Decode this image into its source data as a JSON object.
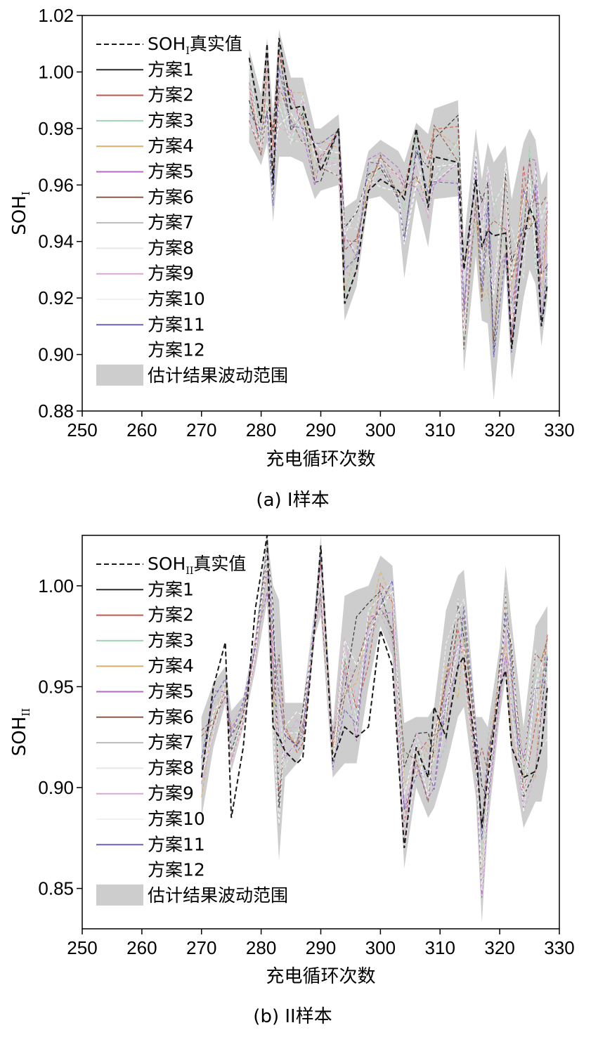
{
  "chart_data": [
    {
      "type": "line",
      "caption": "(a) I样本",
      "ylabel": "SOH",
      "ylabel_sub": "I",
      "xlabel": "充电循环次数",
      "xlim": [
        250,
        330
      ],
      "ylim": [
        0.88,
        1.02
      ],
      "xticks": [
        250,
        260,
        270,
        280,
        290,
        300,
        310,
        320,
        330
      ],
      "yticks": [
        0.88,
        0.9,
        0.92,
        0.94,
        0.96,
        0.98,
        1.0,
        1.02
      ],
      "ytick_labels": [
        "0.88",
        "0.90",
        "0.92",
        "0.94",
        "0.96",
        "0.98",
        "1.00",
        "1.02"
      ],
      "legend": {
        "true_label": "SOH",
        "true_sub": "I",
        "true_suffix": "真实值",
        "band_label": "估计结果波动范围",
        "scheme_labels": [
          "方案1",
          "方案2",
          "方案3",
          "方案4",
          "方案5",
          "方案6",
          "方案7",
          "方案8",
          "方案9",
          "方案10",
          "方案11",
          "方案12"
        ]
      },
      "x": [
        278,
        280,
        281,
        282,
        283,
        285,
        287,
        289,
        290,
        293,
        294,
        296,
        298,
        300,
        303,
        304,
        306,
        308,
        309,
        313,
        314,
        316,
        317,
        318,
        319,
        321,
        322,
        324,
        325,
        326,
        327,
        328
      ],
      "true_values": [
        1.005,
        0.982,
        1.01,
        0.96,
        1.012,
        0.987,
        0.988,
        0.973,
        0.965,
        0.98,
        0.918,
        0.93,
        0.958,
        0.962,
        0.958,
        0.955,
        0.98,
        0.952,
        0.97,
        0.968,
        0.93,
        0.962,
        0.938,
        0.944,
        0.942,
        0.943,
        0.902,
        0.94,
        0.952,
        0.947,
        0.91,
        0.925
      ],
      "band_upper": [
        1.008,
        0.992,
        1.012,
        0.985,
        1.015,
        0.998,
        0.998,
        0.98,
        0.98,
        0.985,
        0.952,
        0.955,
        0.972,
        0.976,
        0.972,
        0.968,
        0.982,
        0.978,
        0.987,
        0.99,
        0.94,
        0.98,
        0.962,
        0.975,
        0.968,
        0.974,
        0.955,
        0.975,
        0.98,
        0.976,
        0.96,
        0.965
      ],
      "band_lower": [
        0.975,
        0.967,
        0.975,
        0.947,
        0.97,
        0.97,
        0.968,
        0.955,
        0.958,
        0.96,
        0.912,
        0.924,
        0.955,
        0.956,
        0.95,
        0.927,
        0.955,
        0.938,
        0.955,
        0.956,
        0.894,
        0.935,
        0.912,
        0.911,
        0.884,
        0.93,
        0.891,
        0.92,
        0.93,
        0.925,
        0.903,
        0.92
      ],
      "series_colors": [
        "#2a2a2a",
        "#c8564b",
        "#9fd4b3",
        "#d9b06c",
        "#b56bc4",
        "#8b5a4a",
        "#bbbbbb",
        "#e8e8e8",
        "#dda7d5",
        "#f2f2f2",
        "#6e63b5",
        "#ffffff"
      ],
      "band_color": "#cdcdcd"
    },
    {
      "type": "line",
      "caption": "(b) II样本",
      "ylabel": "SOH",
      "ylabel_sub": "II",
      "xlabel": "充电循环次数",
      "xlim": [
        250,
        330
      ],
      "ylim": [
        0.83,
        1.025
      ],
      "xticks": [
        250,
        260,
        270,
        280,
        290,
        300,
        310,
        320,
        330
      ],
      "yticks": [
        0.85,
        0.9,
        0.95,
        1.0
      ],
      "ytick_labels": [
        "0.85",
        "0.90",
        "0.95",
        "1.00"
      ],
      "legend": {
        "true_label": "SOH",
        "true_sub": "II",
        "true_suffix": "真实值",
        "band_label": "估计结果波动范围",
        "scheme_labels": [
          "方案1",
          "方案2",
          "方案3",
          "方案4",
          "方案5",
          "方案6",
          "方案7",
          "方案8",
          "方案9",
          "方案10",
          "方案11",
          "方案12"
        ]
      },
      "x": [
        270,
        272,
        274,
        275,
        277,
        279,
        281,
        282,
        283,
        284,
        286,
        287,
        289,
        290,
        292,
        294,
        296,
        298,
        300,
        302,
        304,
        306,
        308,
        309,
        311,
        313,
        314,
        316,
        317,
        318,
        320,
        321,
        322,
        324,
        326,
        327,
        328
      ],
      "true_values": [
        0.905,
        0.95,
        0.972,
        0.885,
        0.92,
        0.988,
        1.025,
        0.93,
        0.925,
        0.918,
        0.912,
        0.915,
        0.98,
        1.02,
        0.913,
        0.93,
        0.925,
        0.93,
        0.978,
        0.96,
        0.87,
        0.92,
        0.905,
        0.94,
        0.925,
        0.96,
        0.965,
        0.918,
        0.88,
        0.905,
        0.95,
        0.958,
        0.92,
        0.905,
        0.908,
        0.92,
        0.95
      ],
      "band_upper": [
        0.935,
        0.952,
        0.96,
        0.938,
        0.945,
        0.975,
        1.025,
        1.0,
        0.993,
        0.942,
        0.942,
        0.942,
        0.99,
        1.025,
        0.93,
        0.995,
        0.998,
        1.0,
        1.015,
        1.01,
        0.932,
        0.935,
        0.935,
        0.94,
        0.988,
        1.005,
        1.008,
        0.935,
        0.935,
        0.93,
        0.97,
        1.01,
        0.982,
        0.93,
        0.98,
        0.985,
        0.99
      ],
      "band_lower": [
        0.885,
        0.92,
        0.942,
        0.908,
        0.93,
        0.958,
        0.992,
        0.918,
        0.864,
        0.905,
        0.912,
        0.918,
        0.975,
        0.985,
        0.905,
        0.912,
        0.912,
        0.95,
        0.98,
        0.965,
        0.86,
        0.9,
        0.885,
        0.89,
        0.91,
        0.935,
        0.94,
        0.895,
        0.833,
        0.88,
        0.935,
        0.955,
        0.915,
        0.88,
        0.893,
        0.893,
        0.91
      ],
      "series_colors": [
        "#2a2a2a",
        "#c8564b",
        "#9fd4b3",
        "#d9b06c",
        "#b56bc4",
        "#8b5a4a",
        "#bbbbbb",
        "#e8e8e8",
        "#dda7d5",
        "#f2f2f2",
        "#6e63b5",
        "#ffffff"
      ],
      "band_color": "#cdcdcd"
    }
  ]
}
